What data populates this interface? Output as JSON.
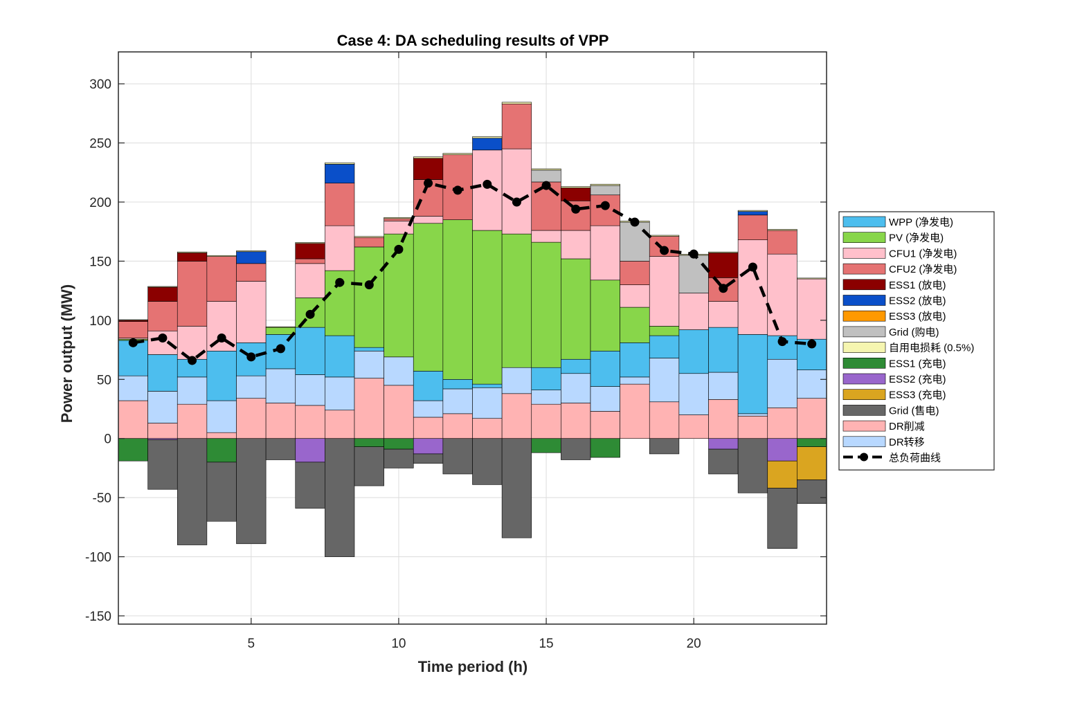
{
  "chart_data": {
    "type": "bar",
    "stacked": true,
    "title": "Case 4: DA scheduling results of VPP",
    "xlabel": "Time period (h)",
    "ylabel": "Power output (MW)",
    "xlim": [
      0.5,
      24.5
    ],
    "ylim": [
      -157,
      327
    ],
    "xticks": [
      5,
      10,
      15,
      20
    ],
    "yticks": [
      -150,
      -100,
      -50,
      0,
      50,
      100,
      150,
      200,
      250,
      300
    ],
    "grid": true,
    "legend_position": "outside-right",
    "x": [
      1,
      2,
      3,
      4,
      5,
      6,
      7,
      8,
      9,
      10,
      11,
      12,
      13,
      14,
      15,
      16,
      17,
      18,
      19,
      20,
      21,
      22,
      23,
      24
    ],
    "positive_series": [
      {
        "name": "DR削减",
        "color": "#ffb3b3",
        "values": [
          32,
          13,
          29,
          5,
          34,
          30,
          28,
          24,
          51,
          45,
          18,
          21,
          17,
          38,
          29,
          30,
          23,
          46,
          31,
          20,
          33,
          19,
          26,
          34
        ]
      },
      {
        "name": "DR转移",
        "color": "#b8d8ff",
        "values": [
          21,
          27,
          23,
          27,
          19,
          29,
          26,
          28,
          23,
          24,
          14,
          21,
          26,
          22,
          12,
          25,
          21,
          6,
          37,
          35,
          23,
          2,
          41,
          24
        ]
      },
      {
        "name": "WPP (净发电)",
        "color": "#4dbeee",
        "values": [
          30,
          31,
          15,
          42,
          28,
          29,
          40,
          35,
          3,
          0,
          25,
          8,
          3,
          0,
          19,
          12,
          30,
          29,
          19,
          37,
          38,
          67,
          20,
          26
        ]
      },
      {
        "name": "PV (净发电)",
        "color": "#88d64a",
        "values": [
          1,
          0,
          0,
          0,
          0,
          6,
          25,
          55,
          85,
          104,
          125,
          135,
          130,
          113,
          106,
          85,
          60,
          30,
          8,
          0,
          0,
          0,
          0,
          0
        ]
      },
      {
        "name": "CFU1 (净发电)",
        "color": "#ffc0cb",
        "values": [
          1,
          20,
          28,
          42,
          52,
          0,
          29,
          38,
          0,
          11,
          6,
          0,
          68,
          72,
          10,
          24,
          46,
          19,
          59,
          31,
          22,
          80,
          69,
          51
        ]
      },
      {
        "name": "CFU2 (净发电)",
        "color": "#e57373",
        "values": [
          14,
          25,
          55,
          38,
          15,
          0,
          4,
          36,
          8,
          2,
          31,
          55,
          0,
          38,
          41,
          25,
          26,
          20,
          17,
          0,
          20,
          21,
          20,
          0
        ]
      },
      {
        "name": "ESS1 (放电)",
        "color": "#8b0000",
        "values": [
          1,
          12,
          7,
          0,
          0,
          0,
          13,
          0,
          0,
          0,
          18,
          0,
          0,
          0,
          0,
          11,
          0,
          0,
          0,
          0,
          21,
          0,
          0,
          0
        ]
      },
      {
        "name": "ESS2 (放电)",
        "color": "#0a4fc9",
        "values": [
          0,
          0,
          0,
          0,
          10,
          0,
          0,
          16,
          0,
          0,
          0,
          0,
          10,
          0,
          0,
          0,
          0,
          0,
          0,
          0,
          0,
          3,
          0,
          0
        ]
      },
      {
        "name": "ESS3 (放电)",
        "color": "#ff9900",
        "values": [
          0,
          0,
          0,
          0,
          0,
          0,
          0,
          0,
          0,
          0,
          0,
          0,
          0,
          0,
          0,
          0,
          0,
          0,
          0,
          0,
          0,
          0,
          0,
          0
        ]
      },
      {
        "name": "Grid (购电)",
        "color": "#c0c0c0",
        "values": [
          0,
          0,
          0,
          0,
          0,
          0,
          0,
          0,
          0,
          0,
          0,
          0,
          0,
          0,
          10,
          0,
          8,
          33,
          0,
          32,
          0,
          0,
          0,
          0
        ]
      },
      {
        "name": "自用电损耗 (0.5%)",
        "color": "#f5f5b0",
        "values": [
          0.5,
          0.6,
          0.8,
          0.8,
          0.8,
          0.5,
          0.8,
          1.2,
          0.9,
          0.9,
          1.2,
          1.2,
          1.3,
          1.4,
          1.1,
          1.1,
          1.1,
          0.9,
          0.9,
          0.8,
          0.8,
          0.9,
          0.9,
          0.7
        ]
      }
    ],
    "negative_series": [
      {
        "name": "ESS1 (充电)",
        "color": "#2e8b35",
        "values": [
          -19,
          0,
          0,
          -20,
          0,
          0,
          0,
          0,
          -7,
          -9,
          0,
          0,
          0,
          0,
          -12,
          0,
          -16,
          0,
          0,
          0,
          0,
          0,
          0,
          -7
        ]
      },
      {
        "name": "ESS2 (充电)",
        "color": "#9966cc",
        "values": [
          0,
          -1,
          0,
          0,
          0,
          0,
          -20,
          0,
          0,
          0,
          -13,
          0,
          0,
          0,
          0,
          0,
          0,
          0,
          0,
          0,
          -9,
          0,
          -19,
          0
        ]
      },
      {
        "name": "ESS3 (充电)",
        "color": "#daa520",
        "values": [
          0,
          0,
          0,
          0,
          0,
          0,
          0,
          0,
          0,
          0,
          0,
          0,
          0,
          0,
          0,
          0,
          0,
          0,
          0,
          0,
          0,
          0,
          -23,
          -28
        ]
      },
      {
        "name": "Grid (售电)",
        "color": "#666666",
        "values": [
          0,
          -42,
          -90,
          -50,
          -89,
          -18,
          -39,
          -100,
          -33,
          -16,
          -8,
          -30,
          -39,
          -84,
          0,
          -18,
          0,
          0,
          -13,
          0,
          -21,
          -46,
          -51,
          -20
        ]
      }
    ],
    "line_series": {
      "name": "总负荷曲线",
      "color": "#000000",
      "values": [
        81,
        85,
        66,
        85,
        69,
        76,
        105,
        132,
        130,
        160,
        216,
        210,
        215,
        200,
        214,
        194,
        197,
        183,
        159,
        156,
        127,
        145,
        82,
        80
      ]
    },
    "legend_order": [
      "WPP (净发电)",
      "PV (净发电)",
      "CFU1 (净发电)",
      "CFU2 (净发电)",
      "ESS1 (放电)",
      "ESS2 (放电)",
      "ESS3 (放电)",
      "Grid (购电)",
      "自用电损耗 (0.5%)",
      "ESS1 (充电)",
      "ESS2 (充电)",
      "ESS3 (充电)",
      "Grid (售电)",
      "DR削减",
      "DR转移",
      "总负荷曲线"
    ]
  }
}
